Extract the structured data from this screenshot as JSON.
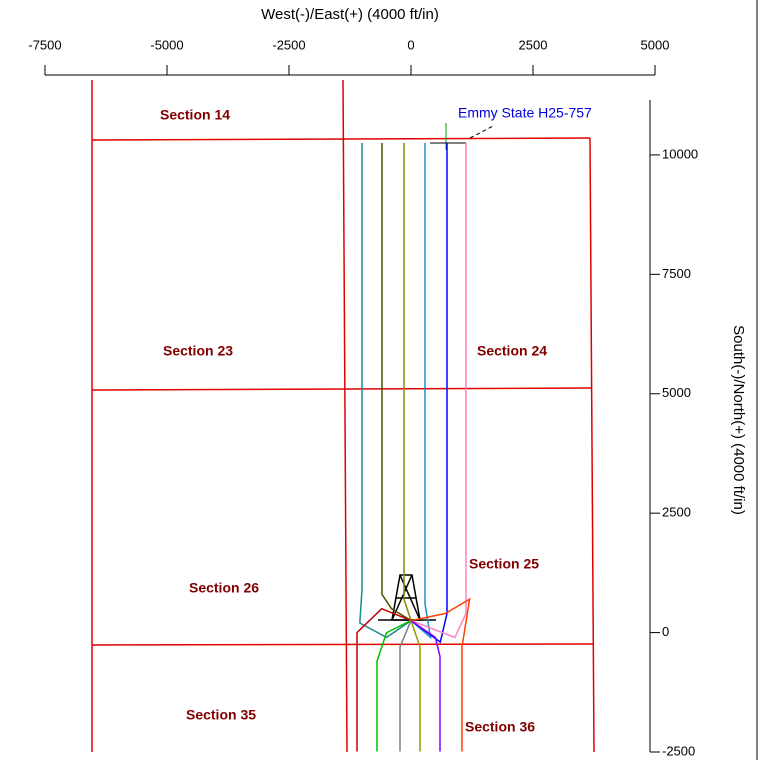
{
  "chart_data": {
    "type": "plan",
    "x_label": "West(-)/East(+) (4000 ft/in)",
    "y_label": "South(-)/North(+) (4000 ft/in)",
    "xlim": [
      -7500,
      5000
    ],
    "xticks": [
      -7500,
      -5000,
      -2500,
      0,
      2500,
      5000
    ],
    "ylim": [
      -2500,
      11150
    ],
    "yticks": [
      -2500,
      0,
      2500,
      5000,
      7500,
      10000
    ],
    "well_label": "Emmy State H25-757",
    "sections": [
      "Section 14",
      "Section 23",
      "Section 24",
      "Section 25",
      "Section 26",
      "Section 35",
      "Section 36"
    ],
    "series": [
      {
        "color": "#1a8a8a",
        "x": [
          0,
          -500,
          -1050,
          -1004,
          -1004
        ],
        "y": [
          250,
          -100,
          200,
          900,
          10250
        ]
      },
      {
        "color": "#4d4d00",
        "x": [
          0,
          -400,
          -594,
          -594
        ],
        "y": [
          250,
          500,
          800,
          10250
        ]
      },
      {
        "color": "#8c8c00",
        "x": [
          0,
          -143,
          -143
        ],
        "y": [
          250,
          700,
          10250
        ]
      },
      {
        "color": "#1e90c8",
        "x": [
          0,
          400,
          287,
          287
        ],
        "y": [
          250,
          -100,
          600,
          10250
        ]
      },
      {
        "color": "#0000ff",
        "x": [
          0,
          600,
          738,
          738
        ],
        "y": [
          250,
          -200,
          400,
          10250
        ]
      },
      {
        "color": "#ff80c0",
        "x": [
          0,
          900,
          1127,
          1127
        ],
        "y": [
          250,
          -100,
          400,
          10250
        ]
      },
      {
        "color": "#c00000",
        "x": [
          0,
          -600,
          -1107,
          -1107
        ],
        "y": [
          250,
          500,
          0,
          -2490
        ]
      },
      {
        "color": "#00c000",
        "x": [
          0,
          -500,
          -697,
          -697
        ],
        "y": [
          250,
          0,
          -600,
          -2490
        ]
      },
      {
        "color": "#808080",
        "x": [
          0,
          -225,
          -225
        ],
        "y": [
          250,
          -300,
          -2490
        ]
      },
      {
        "color": "#9a9a00",
        "x": [
          0,
          184,
          184
        ],
        "y": [
          250,
          -300,
          -2490
        ]
      },
      {
        "color": "#8000ff",
        "x": [
          0,
          500,
          594,
          594
        ],
        "y": [
          250,
          -100,
          -500,
          -2490
        ]
      },
      {
        "color": "#ff4000",
        "x": [
          0,
          700,
          1200,
          1045,
          1045
        ],
        "y": [
          250,
          400,
          700,
          -300,
          -2490
        ]
      }
    ]
  }
}
